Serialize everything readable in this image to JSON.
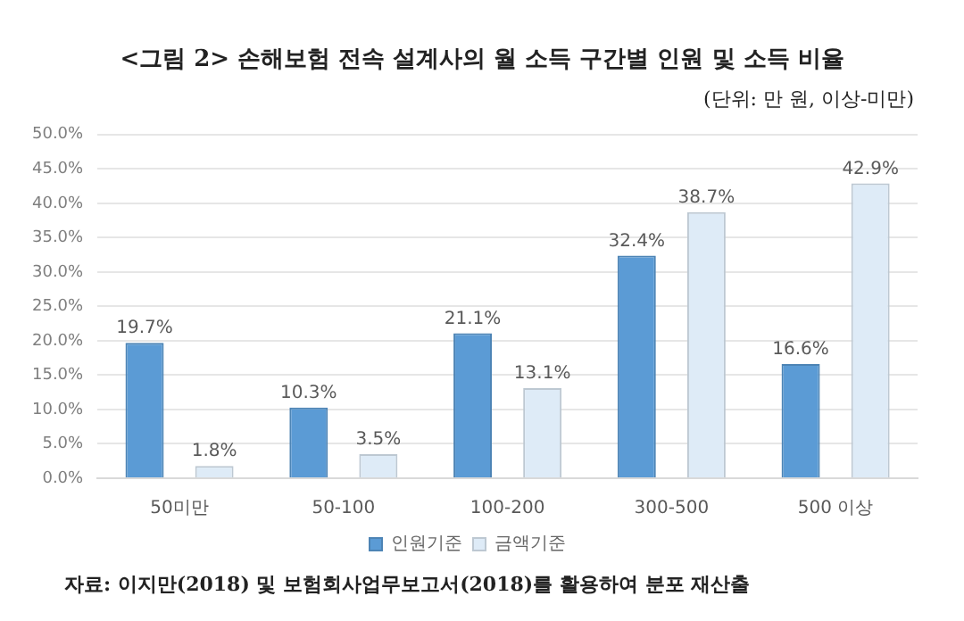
{
  "chart_data": {
    "type": "bar",
    "title": "<그림 2> 손해보험 전속 설계사의 월 소득 구간별 인원 및 소득 비율",
    "subtitle": "(단위: 만 원, 이상-미만)",
    "categories": [
      "50미만",
      "50-100",
      "100-200",
      "300-500",
      "500 이상"
    ],
    "series": [
      {
        "name": "인원기준",
        "color": "#5b9bd5",
        "values": [
          19.7,
          10.3,
          21.1,
          32.4,
          16.6
        ],
        "value_labels": [
          "19.7%",
          "10.3%",
          "21.1%",
          "32.4%",
          "16.6%"
        ]
      },
      {
        "name": "금액기준",
        "color": "#deebf7",
        "values": [
          1.8,
          3.5,
          13.1,
          38.7,
          42.9
        ],
        "value_labels": [
          "1.8%",
          "3.5%",
          "13.1%",
          "38.7%",
          "42.9%"
        ]
      }
    ],
    "ylim": [
      0,
      50
    ],
    "yticks": [
      {
        "value": 0,
        "label": "0.0%"
      },
      {
        "value": 5,
        "label": "5.0%"
      },
      {
        "value": 10,
        "label": "10.0%"
      },
      {
        "value": 15,
        "label": "15.0%"
      },
      {
        "value": 20,
        "label": "20.0%"
      },
      {
        "value": 25,
        "label": "25.0%"
      },
      {
        "value": 30,
        "label": "30.0%"
      },
      {
        "value": 35,
        "label": "35.0%"
      },
      {
        "value": 40,
        "label": "40.0%"
      },
      {
        "value": 45,
        "label": "45.0%"
      },
      {
        "value": 50,
        "label": "50.0%"
      }
    ],
    "grid": "y",
    "legend": "bottom",
    "annotations": [
      "자료: 이지만(2018) 및 보험회사업무보고서(2018)를 활용하여 분포 재산출"
    ]
  }
}
